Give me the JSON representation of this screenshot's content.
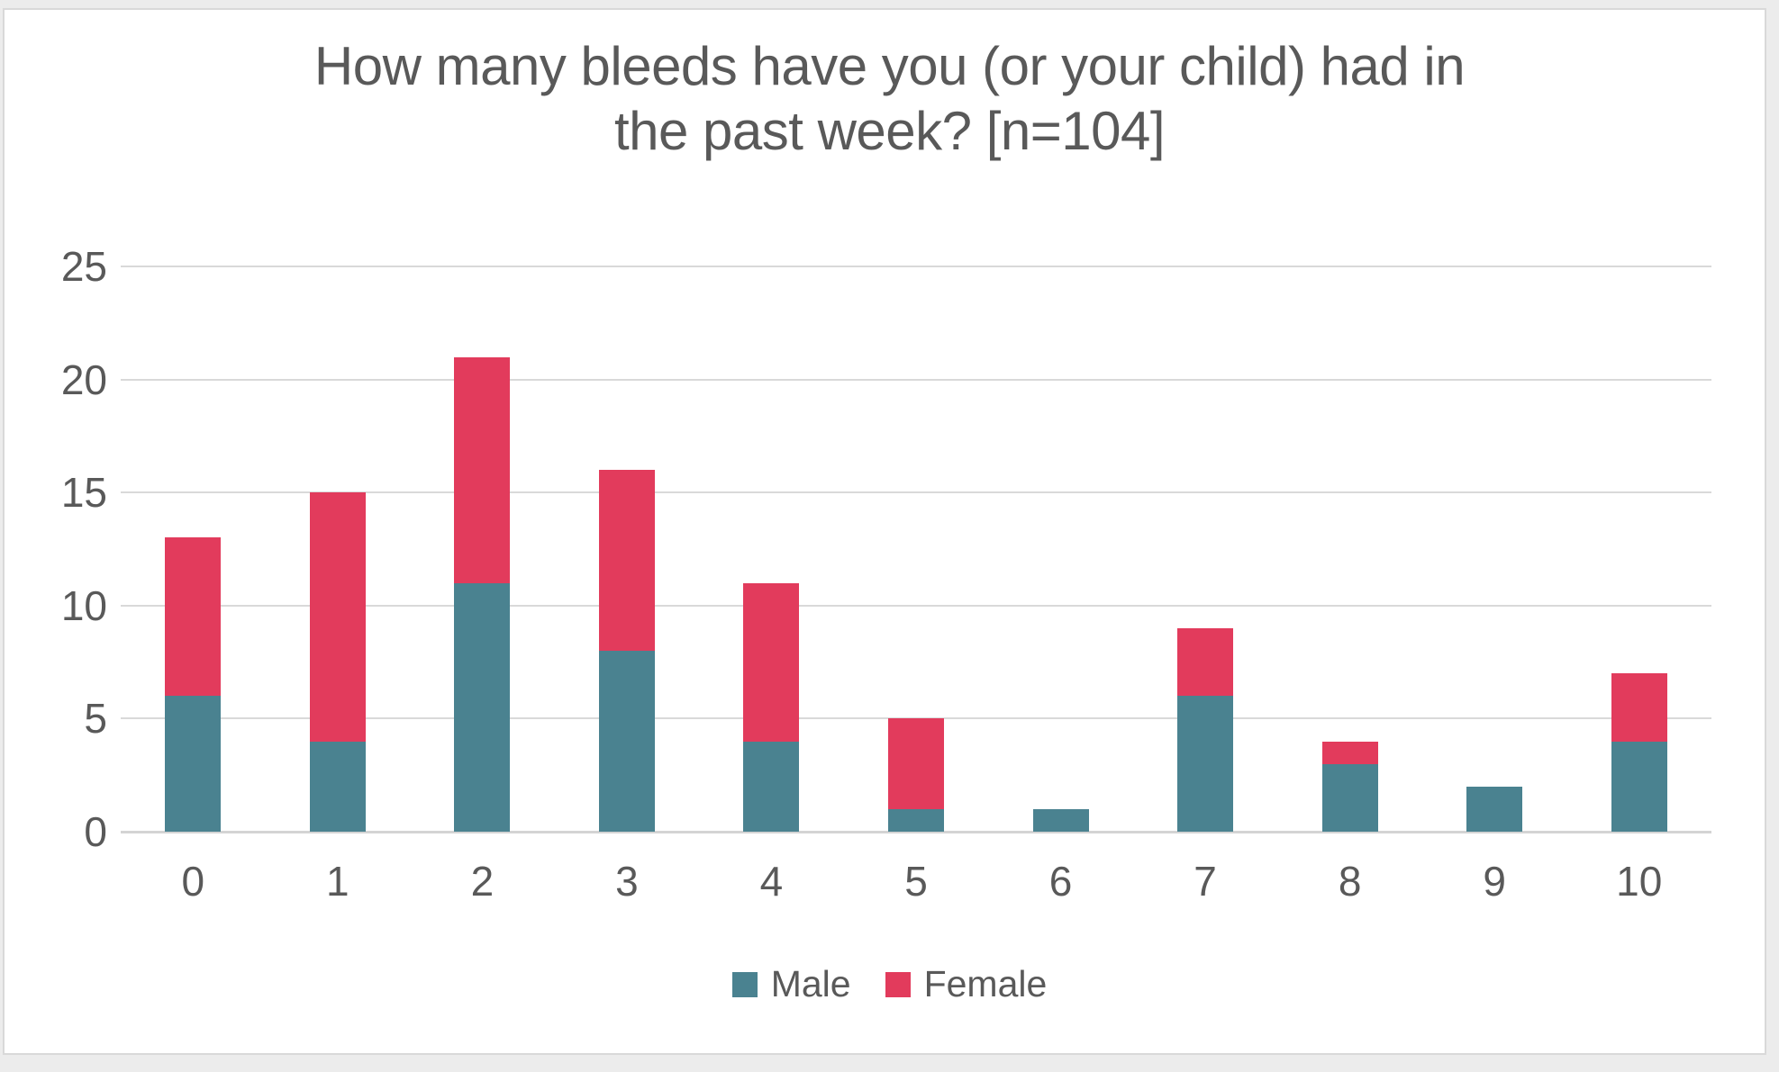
{
  "colors": {
    "male": "#4A8290",
    "female": "#E23B5C",
    "gridline": "#D9D9D9",
    "axis_text": "#595959",
    "title_text": "#595959",
    "card_background": "#FFFFFF",
    "card_border": "#D9D9D9",
    "page_background": "#ECECEC"
  },
  "chart_data": {
    "type": "bar",
    "stacked": true,
    "title": "How many bleeds have you (or your child) had in the past week? [n=104]",
    "title_lines": [
      "How many bleeds have you (or your child) had in",
      "the past week? [n=104]"
    ],
    "categories": [
      "0",
      "1",
      "2",
      "3",
      "4",
      "5",
      "6",
      "7",
      "8",
      "9",
      "10"
    ],
    "series": [
      {
        "name": "Male",
        "color": "#4A8290",
        "values": [
          6,
          4,
          11,
          8,
          4,
          1,
          1,
          6,
          3,
          2,
          4
        ]
      },
      {
        "name": "Female",
        "color": "#E23B5C",
        "values": [
          7,
          11,
          10,
          8,
          7,
          4,
          0,
          3,
          1,
          0,
          3
        ]
      }
    ],
    "totals": [
      13,
      15,
      21,
      16,
      11,
      5,
      1,
      9,
      4,
      2,
      7
    ],
    "ylim": [
      0,
      25
    ],
    "yticks": [
      0,
      5,
      10,
      15,
      20,
      25
    ],
    "grid": true,
    "legend_position": "bottom"
  }
}
